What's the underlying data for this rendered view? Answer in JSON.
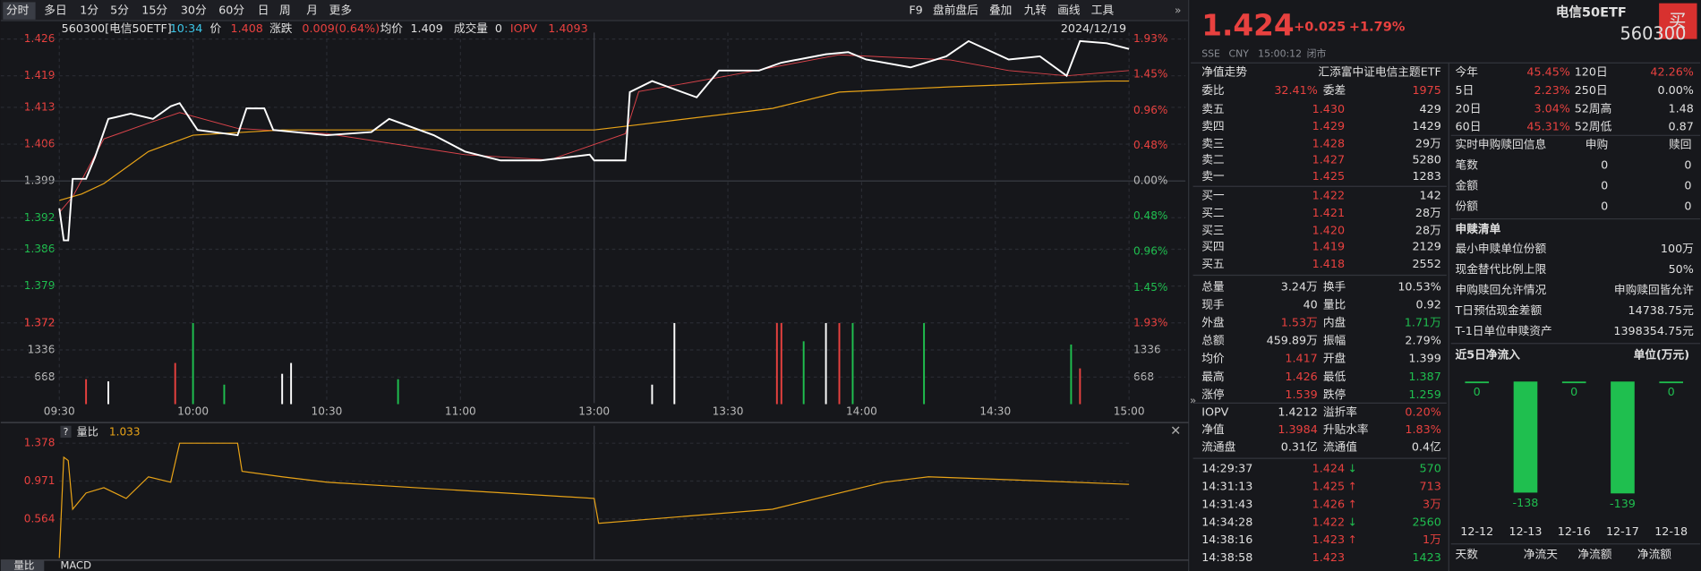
{
  "toolbar": {
    "tabs": [
      "分时",
      "多日",
      "1分",
      "5分",
      "15分",
      "30分",
      "60分",
      "日",
      "周",
      "月",
      "更多"
    ],
    "tools": [
      "F9",
      "盘前盘后",
      "叠加",
      "九转",
      "画线",
      "工具"
    ]
  },
  "header": {
    "code": "560300[电信50ETF]",
    "time": "10:34",
    "price_label": "价",
    "price": "1.408",
    "change_label": "涨跌",
    "change": "0.009(0.64%)",
    "avg_label": "均价",
    "avg": "1.409",
    "volume_label": "成交量",
    "volume": "0",
    "iopv_label": "IOPV",
    "iopv": "1.4093",
    "date": "2024/12/19"
  },
  "price_chart": {
    "ylim": [
      1.372,
      1.426
    ],
    "yticks": [
      1.426,
      1.419,
      1.413,
      1.406,
      1.399,
      1.392,
      1.386,
      1.379,
      1.372
    ],
    "pct_lim": [
      -1.93,
      1.93
    ],
    "pct_ticks": [
      {
        "value": 1.93,
        "label": "1.93%"
      },
      {
        "value": 1.45,
        "label": "1.45%"
      },
      {
        "value": 0.96,
        "label": "0.96%"
      },
      {
        "value": 0.48,
        "label": "0.48%"
      },
      {
        "value": 0,
        "label": "0.00%"
      },
      {
        "value": -0.48,
        "label": "0.48%"
      },
      {
        "value": -0.96,
        "label": "0.96%"
      },
      {
        "value": -1.45,
        "label": "1.45%"
      }
    ],
    "xlim": [
      0,
      240
    ],
    "xticks": [
      {
        "value": 0,
        "label": "09:30"
      },
      {
        "value": 30,
        "label": "10:00"
      },
      {
        "value": 60,
        "label": "10:30"
      },
      {
        "value": 90,
        "label": "11:00"
      },
      {
        "value": 120,
        "label": "13:00"
      },
      {
        "value": 150,
        "label": "13:30"
      },
      {
        "value": 180,
        "label": "14:00"
      },
      {
        "value": 210,
        "label": "14:30"
      },
      {
        "value": 240,
        "label": "15:00"
      }
    ],
    "price": {
      "color": "#ffffff",
      "x": [
        0,
        1,
        2,
        3,
        6,
        8,
        11,
        16,
        21,
        25,
        27,
        31,
        40,
        42,
        46,
        48,
        60,
        70,
        74,
        84,
        91,
        99,
        108,
        119,
        120,
        127,
        128,
        133,
        143,
        148,
        157,
        162,
        172,
        177,
        181,
        191,
        199,
        204,
        213,
        220,
        226,
        229,
        235,
        240
      ],
      "values": [
        1.3938,
        1.3877,
        1.3877,
        1.3994,
        1.3994,
        1.4035,
        1.4108,
        1.4118,
        1.4108,
        1.4132,
        1.4138,
        1.4087,
        1.4077,
        1.4128,
        1.4128,
        1.4087,
        1.4077,
        1.4083,
        1.4108,
        1.4077,
        1.4046,
        1.4029,
        1.4029,
        1.404,
        1.4029,
        1.4029,
        1.4159,
        1.418,
        1.4149,
        1.42,
        1.42,
        1.4215,
        1.4231,
        1.4235,
        1.4221,
        1.4206,
        1.4227,
        1.4256,
        1.4221,
        1.4227,
        1.419,
        1.4256,
        1.4252,
        1.4241
      ]
    },
    "avg": {
      "color": "#e8a317",
      "x": [
        0,
        5,
        10,
        20,
        30,
        50,
        120,
        130,
        160,
        175,
        200,
        235,
        240
      ],
      "values": [
        1.3953,
        1.3965,
        1.3985,
        1.4046,
        1.4077,
        1.4087,
        1.4087,
        1.4097,
        1.4128,
        1.4159,
        1.4169,
        1.418,
        1.418
      ]
    },
    "iopv": {
      "color": "#d9434a",
      "x": [
        0,
        3,
        10,
        20,
        27,
        40,
        60,
        91,
        110,
        127,
        130,
        150,
        175,
        200,
        213,
        226,
        240
      ],
      "values": [
        1.393,
        1.396,
        1.407,
        1.41,
        1.412,
        1.409,
        1.408,
        1.404,
        1.403,
        1.408,
        1.416,
        1.419,
        1.423,
        1.422,
        1.42,
        1.419,
        1.42
      ]
    }
  },
  "volume_chart": {
    "ylim": [
      0,
      2004
    ],
    "yticks": [
      1336,
      668
    ],
    "top_left_label": "1.372",
    "top_right_label": "1.93%",
    "bars": {
      "x": [
        6,
        11,
        26,
        30,
        37,
        50,
        52,
        76,
        133,
        138,
        161,
        162,
        167,
        172,
        175,
        178,
        194,
        227,
        229
      ],
      "values": [
        615,
        561,
        1015,
        2000,
        481,
        748,
        1015,
        615,
        481,
        2000,
        2000,
        2000,
        1550,
        2000,
        2000,
        2000,
        2000,
        1470,
        882
      ],
      "colors": [
        "#e8413f",
        "#ffffff",
        "#e8413f",
        "#1fbf4f",
        "#1fbf4f",
        "#ffffff",
        "#ffffff",
        "#1fbf4f",
        "#ffffff",
        "#ffffff",
        "#e8413f",
        "#e8413f",
        "#1fbf4f",
        "#ffffff",
        "#e8413f",
        "#1fbf4f",
        "#1fbf4f",
        "#1fbf4f",
        "#e8413f"
      ]
    }
  },
  "ratio_chart": {
    "help": "?",
    "legend_label": "量比",
    "legend_value": "1.033",
    "color": "#e8a317",
    "ylim": [
      0.122,
      1.483
    ],
    "yticks": [
      1.378,
      0.971,
      0.564
    ],
    "x": [
      0,
      1,
      2,
      3,
      6,
      10,
      15,
      20,
      25,
      27,
      32,
      40,
      41,
      50,
      60,
      80,
      100,
      120,
      121,
      160,
      185,
      195,
      215,
      240
    ],
    "values": [
      0.145,
      1.227,
      1.192,
      0.669,
      0.843,
      0.9,
      0.785,
      1.017,
      0.959,
      1.378,
      1.378,
      1.378,
      1.076,
      1.017,
      0.959,
      0.9,
      0.843,
      0.785,
      0.518,
      0.669,
      0.959,
      1.017,
      0.982,
      0.936
    ]
  },
  "bottom_tabs": [
    "量比",
    "MACD"
  ],
  "quote": {
    "price": "1.424",
    "change": "+0.025",
    "change_pct": "+1.79%",
    "name": "电信50ETF",
    "code": "560300",
    "exchange": "SSE",
    "currency": "CNY",
    "time": "15:00:12",
    "status": "闭市",
    "buy": "买"
  },
  "order_book": {
    "title": "净值走势",
    "fund": "汇添富中证电信主题ETF",
    "ratio_label": "委比",
    "ratio": "32.41%",
    "diff_label": "委差",
    "diff": "1975",
    "price_color": "#e8413f",
    "asks": [
      {
        "label": "卖五",
        "price": "1.430",
        "volume": "429"
      },
      {
        "label": "卖四",
        "price": "1.429",
        "volume": "1429"
      },
      {
        "label": "卖三",
        "price": "1.428",
        "volume": "29万"
      },
      {
        "label": "卖二",
        "price": "1.427",
        "volume": "5280"
      },
      {
        "label": "卖一",
        "price": "1.425",
        "volume": "1283"
      }
    ],
    "bids": [
      {
        "label": "买一",
        "price": "1.422",
        "volume": "142"
      },
      {
        "label": "买二",
        "price": "1.421",
        "volume": "28万"
      },
      {
        "label": "买三",
        "price": "1.420",
        "volume": "28万"
      },
      {
        "label": "买四",
        "price": "1.419",
        "volume": "2129"
      },
      {
        "label": "买五",
        "price": "1.418",
        "volume": "2552"
      }
    ]
  },
  "stats": [
    {
      "label": "总量",
      "value": "3.24万",
      "color": "#e0e0e0"
    },
    {
      "label": "换手",
      "value": "10.53%",
      "color": "#e0e0e0"
    },
    {
      "label": "现手",
      "value": "40",
      "color": "#e0e0e0"
    },
    {
      "label": "量比",
      "value": "0.92",
      "color": "#e0e0e0"
    },
    {
      "label": "外盘",
      "value": "1.53万",
      "color": "#e8413f"
    },
    {
      "label": "内盘",
      "value": "1.71万",
      "color": "#1fbf4f"
    },
    {
      "label": "总额",
      "value": "459.89万",
      "color": "#e0e0e0"
    },
    {
      "label": "振幅",
      "value": "2.79%",
      "color": "#e0e0e0"
    },
    {
      "label": "均价",
      "value": "1.417",
      "color": "#e8413f"
    },
    {
      "label": "开盘",
      "value": "1.399",
      "color": "#e0e0e0"
    },
    {
      "label": "最高",
      "value": "1.426",
      "color": "#e8413f"
    },
    {
      "label": "最低",
      "value": "1.387",
      "color": "#1fbf4f"
    },
    {
      "label": "涨停",
      "value": "1.539",
      "color": "#e8413f"
    },
    {
      "label": "跌停",
      "value": "1.259",
      "color": "#1fbf4f"
    }
  ],
  "nav_stats": [
    {
      "label": "IOPV",
      "value": "1.4212",
      "color": "#e0e0e0"
    },
    {
      "label": "溢折率",
      "value": "0.20%",
      "color": "#e8413f"
    },
    {
      "label": "净值",
      "value": "1.3984",
      "color": "#e8413f"
    },
    {
      "label": "升贴水率",
      "value": "1.83%",
      "color": "#e8413f"
    },
    {
      "label": "流通盘",
      "value": "0.31亿",
      "color": "#e0e0e0"
    },
    {
      "label": "流通值",
      "value": "0.4亿",
      "color": "#e0e0e0"
    }
  ],
  "trades": [
    {
      "time": "14:29:37",
      "price": "1.424",
      "arrow": "↓",
      "volume": "570",
      "color": "#1fbf4f"
    },
    {
      "time": "14:31:13",
      "price": "1.425",
      "arrow": "↑",
      "volume": "713",
      "color": "#e8413f"
    },
    {
      "time": "14:31:43",
      "price": "1.426",
      "arrow": "↑",
      "volume": "3万",
      "color": "#e8413f"
    },
    {
      "time": "14:34:28",
      "price": "1.422",
      "arrow": "↓",
      "volume": "2560",
      "color": "#1fbf4f"
    },
    {
      "time": "14:38:16",
      "price": "1.423",
      "arrow": "↑",
      "volume": "1万",
      "color": "#e8413f"
    },
    {
      "time": "14:38:58",
      "price": "1.423",
      "volume": "1423",
      "color": "#1fbf4f"
    }
  ],
  "performance": [
    {
      "label": "今年",
      "value": "45.45%",
      "color": "#e8413f"
    },
    {
      "label": "120日",
      "value": "42.26%",
      "color": "#e8413f"
    },
    {
      "label": "5日",
      "value": "2.23%",
      "color": "#e8413f"
    },
    {
      "label": "250日",
      "value": "0.00%",
      "color": "#e0e0e0"
    },
    {
      "label": "20日",
      "value": "3.04%",
      "color": "#e8413f"
    },
    {
      "label": "52周高",
      "value": "1.48",
      "color": "#e0e0e0"
    },
    {
      "label": "60日",
      "value": "45.31%",
      "color": "#e8413f"
    },
    {
      "label": "52周低",
      "value": "0.87",
      "color": "#e0e0e0"
    }
  ],
  "realtime": {
    "title": "实时申购赎回信息",
    "columns": [
      "申购",
      "赎回"
    ],
    "rows": [
      [
        "笔数",
        "0",
        "0"
      ],
      [
        "金额",
        "0",
        "0"
      ],
      [
        "份额",
        "0",
        "0"
      ]
    ]
  },
  "creation_list": {
    "title": "申赎清单",
    "rows": [
      [
        "最小申赎单位份额",
        "100万"
      ],
      [
        "现金替代比例上限",
        "50%"
      ],
      [
        "申购赎回允许情况",
        "申购赎回皆允许"
      ],
      [
        "T日预估现金差额",
        "14738.75元"
      ],
      [
        "T-1日单位申赎资产",
        "1398354.75元"
      ]
    ]
  },
  "inflow": {
    "title": "近5日净流入",
    "unit": "单位(万元)",
    "color": "#1fbf4f",
    "ylim": [
      -160,
      15
    ],
    "categories": [
      "12-12",
      "12-13",
      "12-16",
      "12-17",
      "12-18"
    ],
    "values": [
      0,
      -138,
      0,
      -139,
      0
    ]
  },
  "footer": [
    "天数",
    "净流天",
    "净流额",
    "净流额"
  ]
}
